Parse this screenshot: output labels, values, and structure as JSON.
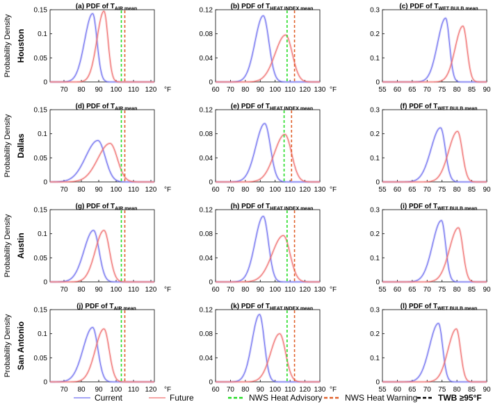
{
  "figure": {
    "ylabel": "Probability Density",
    "unit": "°F",
    "colors": {
      "current": "#6f6ff0",
      "future": "#f06f6f",
      "advisory": "#22dd22",
      "warning": "#e0602a",
      "twb": "#000000"
    }
  },
  "legend": [
    {
      "key": "current",
      "label": "Current",
      "style": "solid"
    },
    {
      "key": "future",
      "label": "Future",
      "style": "solid"
    },
    {
      "key": "advisory",
      "label": "NWS Heat Advisory",
      "style": "dashed"
    },
    {
      "key": "warning",
      "label": "NWS Heat Warning",
      "style": "dashed"
    },
    {
      "key": "twb",
      "label": "TWB ≥95°F",
      "style": "dashed"
    }
  ],
  "chart_data": [
    {
      "id": "a",
      "city": "Houston",
      "type": "line",
      "title": {
        "prefix": "(a) PDF of T",
        "sub": "AIR mean"
      },
      "xlim": [
        62,
        122
      ],
      "xticks": [
        70,
        80,
        90,
        100,
        110,
        120
      ],
      "ylim": [
        0,
        0.15
      ],
      "yticks": [
        {
          "v": 0,
          "label": "0"
        },
        {
          "v": 0.05,
          "label": "0.05"
        },
        {
          "v": 0.1,
          "label": "0.1"
        },
        {
          "v": 0.15,
          "label": "0.15"
        }
      ],
      "series": [
        {
          "name": "Current",
          "peak_x": 86.5,
          "peak_y": 0.142,
          "spread_left": 4.6,
          "spread_right": 2.5
        },
        {
          "name": "Future",
          "peak_x": 93,
          "peak_y": 0.147,
          "spread_left": 4.0,
          "spread_right": 2.3
        }
      ],
      "thresholds": [
        {
          "name": "NWS Heat Advisory",
          "x": 103
        },
        {
          "name": "NWS Heat Warning",
          "x": 105
        }
      ]
    },
    {
      "id": "b",
      "city": "Houston",
      "type": "line",
      "title": {
        "prefix": "(b) PDF of T",
        "sub": "HEAT INDEX mean"
      },
      "xlim": [
        60,
        130
      ],
      "xticks": [
        60,
        70,
        80,
        90,
        100,
        110,
        120,
        130
      ],
      "ylim": [
        0,
        0.12
      ],
      "yticks": [
        {
          "v": 0,
          "label": "0"
        },
        {
          "v": 0.04,
          "label": "0.04"
        },
        {
          "v": 0.08,
          "label": "0.08"
        },
        {
          "v": 0.12,
          "label": "0.12"
        }
      ],
      "series": [
        {
          "name": "Current",
          "peak_x": 92,
          "peak_y": 0.11,
          "spread_left": 5.5,
          "spread_right": 3.8
        },
        {
          "name": "Future",
          "peak_x": 107,
          "peak_y": 0.078,
          "spread_left": 7.0,
          "spread_right": 4.5
        }
      ],
      "thresholds": [
        {
          "name": "NWS Heat Advisory",
          "x": 108
        },
        {
          "name": "NWS Heat Warning",
          "x": 113
        }
      ]
    },
    {
      "id": "c",
      "city": "Houston",
      "type": "line",
      "title": {
        "prefix": "(c) PDF of T",
        "sub": "WET BULB mean"
      },
      "xlim": [
        55,
        90
      ],
      "xticks": [
        55,
        60,
        65,
        70,
        75,
        80,
        85,
        90
      ],
      "ylim": [
        0,
        0.3
      ],
      "yticks": [
        {
          "v": 0,
          "label": "0"
        },
        {
          "v": 0.1,
          "label": "0.1"
        },
        {
          "v": 0.2,
          "label": "0.2"
        },
        {
          "v": 0.3,
          "label": "0.3"
        }
      ],
      "series": [
        {
          "name": "Current",
          "peak_x": 76.2,
          "peak_y": 0.265,
          "spread_left": 2.7,
          "spread_right": 1.3
        },
        {
          "name": "Future",
          "peak_x": 82,
          "peak_y": 0.232,
          "spread_left": 2.6,
          "spread_right": 1.4
        }
      ],
      "thresholds": []
    },
    {
      "id": "d",
      "city": "Dallas",
      "type": "line",
      "title": {
        "prefix": "(d) PDF of T",
        "sub": "AIR mean"
      },
      "xlim": [
        62,
        122
      ],
      "xticks": [
        70,
        80,
        90,
        100,
        110,
        120
      ],
      "ylim": [
        0,
        0.15
      ],
      "yticks": [
        {
          "v": 0,
          "label": "0"
        },
        {
          "v": 0.05,
          "label": "0.05"
        },
        {
          "v": 0.1,
          "label": "0.1"
        },
        {
          "v": 0.15,
          "label": "0.15"
        }
      ],
      "series": [
        {
          "name": "Current",
          "peak_x": 89.5,
          "peak_y": 0.086,
          "spread_left": 7.0,
          "spread_right": 4.2
        },
        {
          "name": "Future",
          "peak_x": 96.5,
          "peak_y": 0.08,
          "spread_left": 7.0,
          "spread_right": 4.2
        }
      ],
      "thresholds": [
        {
          "name": "NWS Heat Advisory",
          "x": 103
        },
        {
          "name": "NWS Heat Warning",
          "x": 105
        }
      ]
    },
    {
      "id": "e",
      "city": "Dallas",
      "type": "line",
      "title": {
        "prefix": "(e) PDF of T",
        "sub": "HEAT INDEX mean"
      },
      "xlim": [
        60,
        130
      ],
      "xticks": [
        60,
        70,
        80,
        90,
        100,
        110,
        120,
        130
      ],
      "ylim": [
        0,
        0.12
      ],
      "yticks": [
        {
          "v": 0,
          "label": "0"
        },
        {
          "v": 0.04,
          "label": "0.04"
        },
        {
          "v": 0.08,
          "label": "0.08"
        },
        {
          "v": 0.12,
          "label": "0.12"
        }
      ],
      "series": [
        {
          "name": "Current",
          "peak_x": 93,
          "peak_y": 0.097,
          "spread_left": 6.0,
          "spread_right": 3.8
        },
        {
          "name": "Future",
          "peak_x": 106.5,
          "peak_y": 0.079,
          "spread_left": 7.0,
          "spread_right": 4.5
        }
      ],
      "thresholds": [
        {
          "name": "NWS Heat Advisory",
          "x": 106
        },
        {
          "name": "NWS Heat Warning",
          "x": 111
        }
      ]
    },
    {
      "id": "f",
      "city": "Dallas",
      "type": "line",
      "title": {
        "prefix": "(f) PDF of T",
        "sub": "WET BULB mean"
      },
      "xlim": [
        55,
        90
      ],
      "xticks": [
        55,
        60,
        65,
        70,
        75,
        80,
        85,
        90
      ],
      "ylim": [
        0,
        0.3
      ],
      "yticks": [
        {
          "v": 0,
          "label": "0"
        },
        {
          "v": 0.1,
          "label": "0.1"
        },
        {
          "v": 0.2,
          "label": "0.2"
        },
        {
          "v": 0.3,
          "label": "0.3"
        }
      ],
      "series": [
        {
          "name": "Current",
          "peak_x": 74.5,
          "peak_y": 0.225,
          "spread_left": 3.2,
          "spread_right": 1.6
        },
        {
          "name": "Future",
          "peak_x": 80.2,
          "peak_y": 0.21,
          "spread_left": 3.0,
          "spread_right": 1.6
        }
      ],
      "thresholds": []
    },
    {
      "id": "g",
      "city": "Austin",
      "type": "line",
      "title": {
        "prefix": "(g) PDF of T",
        "sub": "AIR mean"
      },
      "xlim": [
        62,
        122
      ],
      "xticks": [
        70,
        80,
        90,
        100,
        110,
        120
      ],
      "ylim": [
        0,
        0.15
      ],
      "yticks": [
        {
          "v": 0,
          "label": "0"
        },
        {
          "v": 0.05,
          "label": "0.05"
        },
        {
          "v": 0.1,
          "label": "0.1"
        },
        {
          "v": 0.15,
          "label": "0.15"
        }
      ],
      "series": [
        {
          "name": "Current",
          "peak_x": 87,
          "peak_y": 0.107,
          "spread_left": 5.5,
          "spread_right": 3.2
        },
        {
          "name": "Future",
          "peak_x": 93,
          "peak_y": 0.107,
          "spread_left": 5.0,
          "spread_right": 3.2
        }
      ],
      "thresholds": [
        {
          "name": "NWS Heat Advisory",
          "x": 103
        },
        {
          "name": "NWS Heat Warning",
          "x": 105
        }
      ]
    },
    {
      "id": "h",
      "city": "Austin",
      "type": "line",
      "title": {
        "prefix": "(h) PDF of T",
        "sub": "HEAT INDEX mean"
      },
      "xlim": [
        60,
        130
      ],
      "xticks": [
        60,
        70,
        80,
        90,
        100,
        110,
        120,
        130
      ],
      "ylim": [
        0,
        0.12
      ],
      "yticks": [
        {
          "v": 0,
          "label": "0"
        },
        {
          "v": 0.04,
          "label": "0.04"
        },
        {
          "v": 0.08,
          "label": "0.08"
        },
        {
          "v": 0.12,
          "label": "0.12"
        }
      ],
      "series": [
        {
          "name": "Current",
          "peak_x": 92,
          "peak_y": 0.109,
          "spread_left": 5.5,
          "spread_right": 3.5
        },
        {
          "name": "Future",
          "peak_x": 105.5,
          "peak_y": 0.077,
          "spread_left": 7.5,
          "spread_right": 4.5
        }
      ],
      "thresholds": [
        {
          "name": "NWS Heat Advisory",
          "x": 108
        },
        {
          "name": "NWS Heat Warning",
          "x": 113
        }
      ]
    },
    {
      "id": "i",
      "city": "Austin",
      "type": "line",
      "title": {
        "prefix": "(i) PDF of T",
        "sub": "WET BULB mean"
      },
      "xlim": [
        55,
        90
      ],
      "xticks": [
        55,
        60,
        65,
        70,
        75,
        80,
        85,
        90
      ],
      "ylim": [
        0,
        0.3
      ],
      "yticks": [
        {
          "v": 0,
          "label": "0"
        },
        {
          "v": 0.1,
          "label": "0.1"
        },
        {
          "v": 0.2,
          "label": "0.2"
        },
        {
          "v": 0.3,
          "label": "0.3"
        }
      ],
      "series": [
        {
          "name": "Current",
          "peak_x": 74.8,
          "peak_y": 0.255,
          "spread_left": 3.0,
          "spread_right": 1.4
        },
        {
          "name": "Future",
          "peak_x": 80.5,
          "peak_y": 0.225,
          "spread_left": 3.0,
          "spread_right": 1.5
        }
      ],
      "thresholds": []
    },
    {
      "id": "j",
      "city": "San Antonio",
      "type": "line",
      "title": {
        "prefix": "(j) PDF of T",
        "sub": "AIR mean"
      },
      "xlim": [
        62,
        122
      ],
      "xticks": [
        70,
        80,
        90,
        100,
        110,
        120
      ],
      "ylim": [
        0,
        0.15
      ],
      "yticks": [
        {
          "v": 0,
          "label": "0"
        },
        {
          "v": 0.05,
          "label": "0.05"
        },
        {
          "v": 0.1,
          "label": "0.1"
        },
        {
          "v": 0.15,
          "label": "0.15"
        }
      ],
      "series": [
        {
          "name": "Current",
          "peak_x": 86.5,
          "peak_y": 0.113,
          "spread_left": 5.5,
          "spread_right": 3.0
        },
        {
          "name": "Future",
          "peak_x": 93,
          "peak_y": 0.11,
          "spread_left": 5.0,
          "spread_right": 3.0
        }
      ],
      "thresholds": [
        {
          "name": "NWS Heat Advisory",
          "x": 103
        },
        {
          "name": "NWS Heat Warning",
          "x": 105
        }
      ]
    },
    {
      "id": "k",
      "city": "San Antonio",
      "type": "line",
      "title": {
        "prefix": "(k) PDF of T",
        "sub": "HEAT INDEX mean"
      },
      "xlim": [
        60,
        130
      ],
      "xticks": [
        60,
        70,
        80,
        90,
        100,
        110,
        120,
        130
      ],
      "ylim": [
        0,
        0.12
      ],
      "yticks": [
        {
          "v": 0,
          "label": "0"
        },
        {
          "v": 0.04,
          "label": "0.04"
        },
        {
          "v": 0.08,
          "label": "0.08"
        },
        {
          "v": 0.12,
          "label": "0.12"
        }
      ],
      "series": [
        {
          "name": "Current",
          "peak_x": 89.5,
          "peak_y": 0.112,
          "spread_left": 5.0,
          "spread_right": 3.2
        },
        {
          "name": "Future",
          "peak_x": 103,
          "peak_y": 0.08,
          "spread_left": 6.0,
          "spread_right": 4.0
        }
      ],
      "thresholds": [
        {
          "name": "NWS Heat Advisory",
          "x": 108
        },
        {
          "name": "NWS Heat Warning",
          "x": 113
        }
      ]
    },
    {
      "id": "l",
      "city": "San Antonio",
      "type": "line",
      "title": {
        "prefix": "(l) PDF of T",
        "sub": "WET BULB mean"
      },
      "xlim": [
        55,
        90
      ],
      "xticks": [
        55,
        60,
        65,
        70,
        75,
        80,
        85,
        90
      ],
      "ylim": [
        0,
        0.3
      ],
      "yticks": [
        {
          "v": 0,
          "label": "0"
        },
        {
          "v": 0.1,
          "label": "0.1"
        },
        {
          "v": 0.2,
          "label": "0.2"
        },
        {
          "v": 0.3,
          "label": "0.3"
        }
      ],
      "series": [
        {
          "name": "Current",
          "peak_x": 73.8,
          "peak_y": 0.243,
          "spread_left": 3.0,
          "spread_right": 1.4
        },
        {
          "name": "Future",
          "peak_x": 79.8,
          "peak_y": 0.22,
          "spread_left": 2.8,
          "spread_right": 1.4
        }
      ],
      "thresholds": []
    }
  ]
}
